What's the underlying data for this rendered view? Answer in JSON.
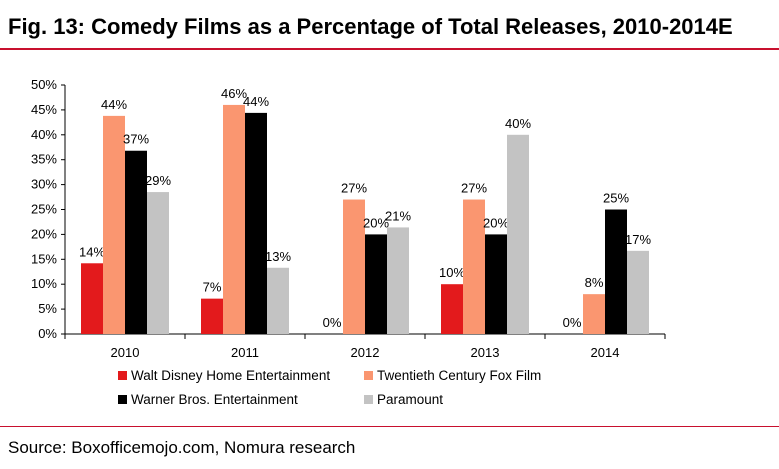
{
  "header": {
    "title": "Fig. 13: Comedy Films as a Percentage of Total Releases, 2010-2014E"
  },
  "footer": {
    "source": "Source: Boxofficemojo.com, Nomura research"
  },
  "colors": {
    "accent_rule": "#c8102e"
  },
  "chart_data": {
    "type": "bar",
    "title": "Fig. 13: Comedy Films as a Percentage of Total Releases, 2010-2014E",
    "xlabel": "",
    "ylabel": "",
    "categories": [
      "2010",
      "2011",
      "2012",
      "2013",
      "2014"
    ],
    "ylim": [
      0,
      50
    ],
    "yticks": [
      0,
      5,
      10,
      15,
      20,
      25,
      30,
      35,
      40,
      45,
      50
    ],
    "ytick_labels": [
      "0%",
      "5%",
      "10%",
      "15%",
      "20%",
      "25%",
      "30%",
      "35%",
      "40%",
      "45%",
      "50%"
    ],
    "grid": false,
    "legend_position": "bottom",
    "series": [
      {
        "name": "Walt Disney Home Entertainment",
        "color": "#e31a1c",
        "values": [
          14.2,
          7.1,
          0,
          10,
          0
        ],
        "labels": [
          "14%",
          "7%",
          "0%",
          "10%",
          "0%"
        ]
      },
      {
        "name": "Twentieth Century Fox Film",
        "color": "#fa9670",
        "values": [
          43.8,
          46,
          27,
          27,
          8
        ],
        "labels": [
          "44%",
          "46%",
          "27%",
          "27%",
          "8%"
        ]
      },
      {
        "name": "Warner Bros. Entertainment",
        "color": "#000000",
        "values": [
          36.8,
          44.4,
          20,
          20,
          25
        ],
        "labels": [
          "37%",
          "44%",
          "20%",
          "20%",
          "25%"
        ]
      },
      {
        "name": "Paramount",
        "color": "#c3c3c3",
        "values": [
          28.5,
          13.3,
          21.4,
          40,
          16.7
        ],
        "labels": [
          "29%",
          "13%",
          "21%",
          "40%",
          "17%"
        ]
      }
    ]
  }
}
